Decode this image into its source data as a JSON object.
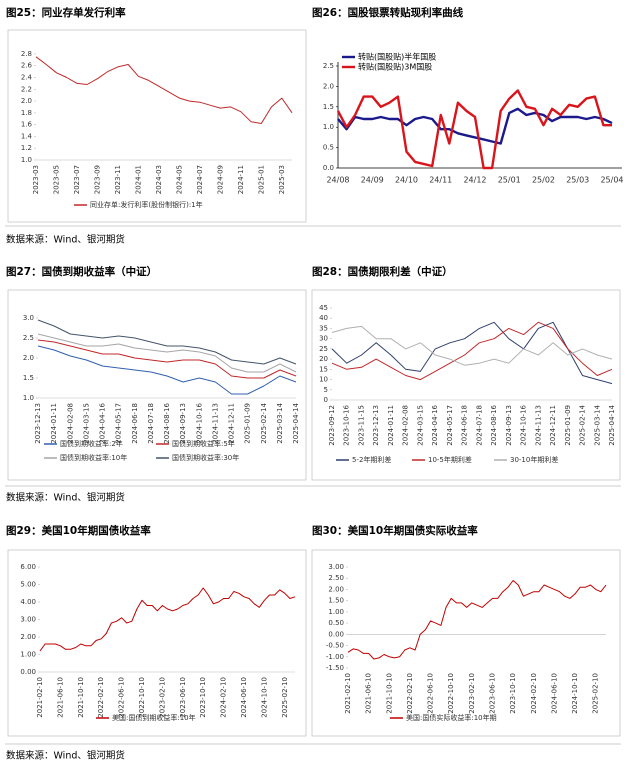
{
  "chart_data": [
    {
      "type": "line",
      "title": "图25：同业存单发行利率",
      "categories": [
        "2023-03",
        null,
        "2023-05",
        null,
        "2023-07",
        null,
        "2023-09",
        null,
        "2023-11",
        null,
        "2024-01",
        null,
        "2024-03",
        null,
        "2024-05",
        null,
        "2024-07",
        null,
        "2024-09",
        null,
        "2024-11",
        null,
        "2025-01",
        null,
        "2025-03",
        null
      ],
      "series": [
        {
          "name": "同业存单:发行利率(股份制银行):1年",
          "color": "#c0282b",
          "values": [
            2.75,
            2.62,
            2.48,
            2.4,
            2.3,
            2.28,
            2.38,
            2.5,
            2.58,
            2.62,
            2.42,
            2.35,
            2.25,
            2.15,
            2.05,
            2.0,
            1.98,
            1.93,
            1.88,
            1.9,
            1.82,
            1.65,
            1.62,
            1.9,
            2.05,
            1.8
          ]
        }
      ],
      "ylim": [
        1.0,
        2.9
      ],
      "yticks": [
        {
          "value": 1,
          "label": "1.0"
        },
        1.2,
        1.4,
        1.6,
        1.8,
        {
          "value": 2,
          "label": "2.0"
        },
        2.2,
        2.4,
        2.6,
        2.8
      ]
    },
    {
      "type": "line",
      "title": "图26：国股银票转贴现利率曲线",
      "categories": [
        "24/08",
        null,
        null,
        null,
        "24/09",
        null,
        null,
        null,
        "24/10",
        null,
        null,
        null,
        "24/11",
        null,
        null,
        null,
        "24/12",
        null,
        null,
        null,
        "25/01",
        null,
        null,
        null,
        "25/02",
        null,
        null,
        null,
        "25/03",
        null,
        null,
        null,
        "25/04"
      ],
      "series": [
        {
          "name": "转贴(国股贴)半年国股",
          "color": "#1a1a8c",
          "values": [
            1.2,
            0.95,
            1.25,
            1.2,
            1.2,
            1.25,
            1.2,
            1.2,
            1.05,
            1.2,
            1.25,
            1.2,
            0.95,
            0.95,
            0.85,
            0.8,
            0.75,
            0.7,
            0.65,
            0.6,
            1.35,
            1.45,
            1.3,
            1.35,
            1.3,
            1.15,
            1.25,
            1.25,
            1.25,
            1.2,
            1.25,
            1.2,
            1.1
          ]
        },
        {
          "name": "转贴(国股贴)3M国股",
          "color": "#d9141b",
          "values": [
            1.4,
            1.0,
            1.3,
            1.75,
            1.75,
            1.5,
            1.6,
            1.75,
            0.4,
            0.15,
            0.1,
            0.05,
            1.3,
            0.6,
            1.6,
            1.4,
            1.25,
            0.0,
            0.0,
            1.4,
            1.7,
            1.9,
            1.5,
            1.45,
            1.05,
            1.45,
            1.3,
            1.55,
            1.5,
            1.7,
            1.75,
            1.05,
            1.05
          ]
        }
      ],
      "ylim": [
        0,
        2.5
      ],
      "yticks": [
        {
          "value": 0,
          "label": "0.0"
        },
        0.5,
        {
          "value": 1,
          "label": "1.0"
        },
        1.5,
        {
          "value": 2,
          "label": "2.0"
        },
        2.5
      ]
    },
    {
      "type": "line",
      "title": "图27：国债到期收益率（中证）",
      "categories": [
        "2023-12-13",
        "2024-01-11",
        "2024-02-08",
        "2024-03-15",
        "2024-04-16",
        "2024-05-17",
        "2024-06-18",
        "2024-07-18",
        "2024-08-16",
        "2024-09-13",
        "2024-10-16",
        "2024-11-13",
        "2024-12-11",
        "2025-01-09",
        "2025-02-14",
        "2025-03-14",
        "2025-04-14"
      ],
      "series": [
        {
          "name": "国债到期收益率:2年",
          "color": "#3060b0",
          "values": [
            2.3,
            2.2,
            2.05,
            1.95,
            1.8,
            1.75,
            1.7,
            1.65,
            1.55,
            1.4,
            1.5,
            1.4,
            1.1,
            1.1,
            1.3,
            1.55,
            1.4
          ]
        },
        {
          "name": "国债到期收益率:5年",
          "color": "#c0282b",
          "values": [
            2.45,
            2.4,
            2.3,
            2.2,
            2.1,
            2.1,
            2.0,
            1.95,
            1.9,
            1.95,
            1.95,
            1.85,
            1.55,
            1.5,
            1.5,
            1.7,
            1.55
          ]
        },
        {
          "name": "国债到期收益率:10年",
          "color": "#a6a6a6",
          "values": [
            2.6,
            2.5,
            2.4,
            2.3,
            2.3,
            2.35,
            2.25,
            2.2,
            2.15,
            2.2,
            2.15,
            2.05,
            1.75,
            1.65,
            1.65,
            1.85,
            1.65
          ]
        },
        {
          "name": "国债到期收益率:30年",
          "color": "#44546a",
          "values": [
            2.95,
            2.8,
            2.6,
            2.55,
            2.5,
            2.55,
            2.5,
            2.4,
            2.3,
            2.3,
            2.25,
            2.15,
            1.95,
            1.9,
            1.85,
            2.0,
            1.85
          ]
        }
      ],
      "ylim": [
        1.0,
        3.0
      ],
      "yticks": [
        {
          "value": 1,
          "label": "1.0"
        },
        1.5,
        {
          "value": 2,
          "label": "2.0"
        },
        2.5,
        {
          "value": 3,
          "label": "3.0"
        }
      ]
    },
    {
      "type": "line",
      "title": "图28：国债期限利差（中证）",
      "categories": [
        "2023-09-12",
        "2023-10-16",
        "2023-11-15",
        "2023-12-13",
        "2024-01-11",
        "2024-02-08",
        "2024-03-15",
        "2024-04-16",
        "2024-05-17",
        "2024-06-18",
        "2024-07-18",
        "2024-08-16",
        "2024-09-13",
        "2024-10-16",
        "2024-11-13",
        "2024-12-11",
        "2025-01-09",
        "2025-02-14",
        "2025-03-14",
        "2025-04-14"
      ],
      "series": [
        {
          "name": "5-2年期利差",
          "color": "#2f3f6e",
          "values": [
            25,
            18,
            22,
            28,
            22,
            15,
            14,
            25,
            28,
            30,
            35,
            38,
            30,
            25,
            35,
            38,
            25,
            12,
            10,
            8
          ]
        },
        {
          "name": "10-5年期利差",
          "color": "#c0282b",
          "values": [
            18,
            15,
            16,
            20,
            16,
            12,
            10,
            14,
            18,
            22,
            28,
            30,
            35,
            32,
            38,
            35,
            25,
            18,
            12,
            15
          ]
        },
        {
          "name": "30-10年期利差",
          "color": "#b0b0b0",
          "values": [
            33,
            35,
            36,
            30,
            30,
            25,
            28,
            22,
            20,
            17,
            18,
            20,
            18,
            25,
            22,
            28,
            22,
            25,
            22,
            20
          ]
        }
      ],
      "ylim": [
        0,
        45
      ],
      "yticks": [
        0,
        5,
        10,
        15,
        20,
        25,
        30,
        35,
        40,
        45
      ]
    },
    {
      "type": "line",
      "title": "图29：美国10年期国债收益率",
      "categories": [
        "2021-02-10",
        null,
        null,
        null,
        "2021-06-10",
        null,
        null,
        null,
        "2021-10-10",
        null,
        null,
        null,
        "2022-02-10",
        null,
        null,
        null,
        "2022-06-10",
        null,
        null,
        null,
        "2022-10-10",
        null,
        null,
        null,
        "2023-02-10",
        null,
        null,
        null,
        "2023-06-10",
        null,
        null,
        null,
        "2023-10-10",
        null,
        null,
        null,
        "2024-02-10",
        null,
        null,
        null,
        "2024-06-10",
        null,
        null,
        null,
        "2024-10-10",
        null,
        null,
        null,
        "2025-02-10",
        null,
        null
      ],
      "series": [
        {
          "name": "美国:国债到期收益率:10年",
          "color": "#c00000",
          "values": [
            1.2,
            1.6,
            1.6,
            1.6,
            1.5,
            1.3,
            1.3,
            1.4,
            1.6,
            1.5,
            1.5,
            1.8,
            1.9,
            2.2,
            2.8,
            2.9,
            3.1,
            2.8,
            2.9,
            3.6,
            4.1,
            3.8,
            3.8,
            3.5,
            3.8,
            3.6,
            3.5,
            3.6,
            3.8,
            3.9,
            4.2,
            4.4,
            4.8,
            4.4,
            3.9,
            4.0,
            4.2,
            4.2,
            4.6,
            4.5,
            4.3,
            4.2,
            3.9,
            3.7,
            4.1,
            4.4,
            4.4,
            4.7,
            4.5,
            4.2,
            4.3
          ]
        }
      ],
      "ylim": [
        0,
        6
      ],
      "yticks": [
        {
          "value": 0,
          "label": "0.00"
        },
        {
          "value": 1,
          "label": "1.00"
        },
        {
          "value": 2,
          "label": "2.00"
        },
        {
          "value": 3,
          "label": "3.00"
        },
        {
          "value": 4,
          "label": "4.00"
        },
        {
          "value": 5,
          "label": "5.00"
        },
        {
          "value": 6,
          "label": "6.00"
        }
      ]
    },
    {
      "type": "line",
      "title": "图30：美国10年期国债实际收益率",
      "categories": [
        "2021-02-10",
        null,
        null,
        null,
        "2021-06-10",
        null,
        null,
        null,
        "2021-10-10",
        null,
        null,
        null,
        "2022-02-10",
        null,
        null,
        null,
        "2022-06-10",
        null,
        null,
        null,
        "2022-10-10",
        null,
        null,
        null,
        "2023-02-10",
        null,
        null,
        null,
        "2023-06-10",
        null,
        null,
        null,
        "2023-10-10",
        null,
        null,
        null,
        "2024-02-10",
        null,
        null,
        null,
        "2024-06-10",
        null,
        null,
        null,
        "2024-10-10",
        null,
        null,
        null,
        "2025-02-10",
        null,
        null
      ],
      "series": [
        {
          "name": "美国:国债实际收益率:10年期",
          "color": "#c00000",
          "values": [
            -0.8,
            -0.65,
            -0.7,
            -0.85,
            -0.85,
            -1.1,
            -1.05,
            -0.9,
            -1.0,
            -1.05,
            -1.0,
            -0.7,
            -0.6,
            -0.7,
            0.0,
            0.2,
            0.6,
            0.5,
            0.4,
            1.2,
            1.6,
            1.4,
            1.4,
            1.2,
            1.4,
            1.3,
            1.2,
            1.4,
            1.6,
            1.6,
            1.9,
            2.1,
            2.4,
            2.2,
            1.7,
            1.8,
            1.9,
            1.9,
            2.2,
            2.1,
            2.0,
            1.9,
            1.7,
            1.6,
            1.8,
            2.1,
            2.1,
            2.2,
            2.0,
            1.9,
            2.2
          ]
        }
      ],
      "ylim": [
        -1.5,
        3.0
      ],
      "yticks": [
        {
          "value": -1.5,
          "label": "-1.50"
        },
        {
          "value": -1,
          "label": "-1.00"
        },
        {
          "value": -0.5,
          "label": "-0.50"
        },
        {
          "value": 0,
          "label": "0.00"
        },
        {
          "value": 0.5,
          "label": "0.50"
        },
        {
          "value": 1,
          "label": "1.00"
        },
        {
          "value": 1.5,
          "label": "1.50"
        },
        {
          "value": 2,
          "label": "2.00"
        },
        {
          "value": 2.5,
          "label": "2.50"
        },
        {
          "value": 3,
          "label": "3.00"
        }
      ]
    }
  ],
  "sources": [
    "数据来源：Wind、银河期货",
    "数据来源：Wind、银河期货",
    "数据来源：Wind、银河期货"
  ]
}
